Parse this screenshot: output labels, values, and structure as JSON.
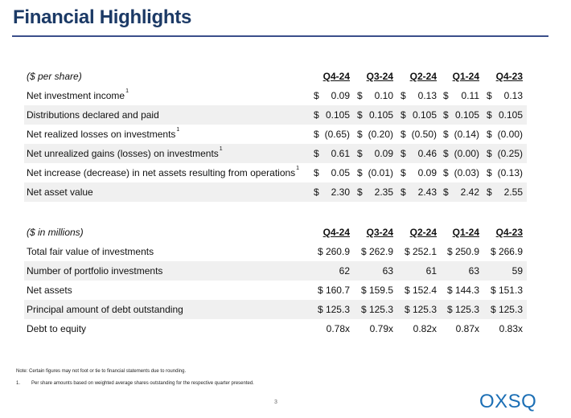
{
  "title": "Financial Highlights",
  "per_share": {
    "unit_label": "($ per share)",
    "columns": [
      "Q4-24",
      "Q3-24",
      "Q2-24",
      "Q1-24",
      "Q4-23"
    ],
    "rows": [
      {
        "label": "Net investment income",
        "footnote": "1",
        "values": [
          "0.09",
          "0.10",
          "0.13",
          "0.11",
          "0.13"
        ]
      },
      {
        "label": "Distributions declared and paid",
        "footnote": "",
        "values": [
          "0.105",
          "0.105",
          "0.105",
          "0.105",
          "0.105"
        ]
      },
      {
        "label": "Net realized losses on investments",
        "footnote": "1",
        "values": [
          "(0.65)",
          "(0.20)",
          "(0.50)",
          "(0.14)",
          "(0.00)"
        ]
      },
      {
        "label": "Net unrealized gains (losses) on investments",
        "footnote": "1",
        "values": [
          "0.61",
          "0.09",
          "0.46",
          "(0.00)",
          "(0.25)"
        ]
      },
      {
        "label": "Net increase (decrease) in net assets resulting from operations",
        "footnote": "1",
        "values": [
          "0.05",
          "(0.01)",
          "0.09",
          "(0.03)",
          "(0.13)"
        ]
      },
      {
        "label": "Net asset value",
        "footnote": "",
        "values": [
          "2.30",
          "2.35",
          "2.43",
          "2.42",
          "2.55"
        ]
      }
    ]
  },
  "millions": {
    "unit_label": "($ in millions)",
    "columns": [
      "Q4-24",
      "Q3-24",
      "Q2-24",
      "Q1-24",
      "Q4-23"
    ],
    "rows": [
      {
        "label": "Total fair value of investments",
        "values": [
          "$ 260.9",
          "$ 262.9",
          "$ 252.1",
          "$ 250.9",
          "$ 266.9"
        ]
      },
      {
        "label": "Number of portfolio investments",
        "values": [
          "62",
          "63",
          "61",
          "63",
          "59"
        ]
      },
      {
        "label": "Net assets",
        "values": [
          "$ 160.7",
          "$ 159.5",
          "$ 152.4",
          "$ 144.3",
          "$ 151.3"
        ]
      },
      {
        "label": "Principal amount of debt outstanding",
        "values": [
          "$ 125.3",
          "$ 125.3",
          "$ 125.3",
          "$ 125.3",
          "$ 125.3"
        ]
      },
      {
        "label": "Debt to equity",
        "values": [
          "0.78x",
          "0.79x",
          "0.82x",
          "0.87x",
          "0.83x"
        ]
      }
    ]
  },
  "currency_symbol": "$",
  "notes": {
    "note": "Note: Certain figures may not foot or tie to financial statements due to rounding.",
    "footnote_num": "1.",
    "footnote_text": "Per share amounts based on weighted average shares outstanding for the respective quarter presented."
  },
  "page_number": "3",
  "logo": "OXSQ",
  "colors": {
    "title": "#1c3a66",
    "rule": "#3b4f8a",
    "logo": "#1c6fb5",
    "band": "#f0f0f0"
  }
}
